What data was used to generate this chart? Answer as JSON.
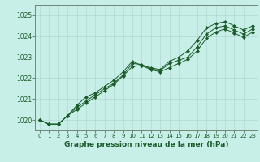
{
  "title": "Graphe pression niveau de la mer (hPa)",
  "bg_color": "#c8eee8",
  "grid_color": "#b0d8d0",
  "line_color": "#1a5c2a",
  "xlim": [
    -0.5,
    23.5
  ],
  "ylim": [
    1019.5,
    1025.5
  ],
  "yticks": [
    1020,
    1021,
    1022,
    1023,
    1024,
    1025
  ],
  "xticks": [
    0,
    1,
    2,
    3,
    4,
    5,
    6,
    7,
    8,
    9,
    10,
    11,
    12,
    13,
    14,
    15,
    16,
    17,
    18,
    19,
    20,
    21,
    22,
    23
  ],
  "series1_x": [
    0,
    1,
    2,
    3,
    4,
    5,
    6,
    7,
    8,
    9,
    10,
    11,
    12,
    13,
    14,
    15,
    16,
    17,
    18,
    19,
    20,
    21,
    22,
    23
  ],
  "series1_y": [
    1020.0,
    1019.8,
    1019.8,
    1020.2,
    1020.7,
    1021.1,
    1021.3,
    1021.6,
    1021.9,
    1022.3,
    1022.8,
    1022.6,
    1022.5,
    1022.4,
    1022.8,
    1023.0,
    1023.3,
    1023.8,
    1024.4,
    1024.6,
    1024.7,
    1024.5,
    1024.3,
    1024.5
  ],
  "series2_x": [
    0,
    1,
    2,
    3,
    4,
    5,
    6,
    7,
    8,
    9,
    10,
    11,
    12,
    13,
    14,
    15,
    16,
    17,
    18,
    19,
    20,
    21,
    22,
    23
  ],
  "series2_y": [
    1020.0,
    1019.8,
    1019.8,
    1020.2,
    1020.6,
    1020.9,
    1021.2,
    1021.5,
    1021.75,
    1022.15,
    1022.7,
    1022.65,
    1022.45,
    1022.35,
    1022.7,
    1022.85,
    1023.0,
    1023.5,
    1024.1,
    1024.4,
    1024.5,
    1024.3,
    1024.1,
    1024.35
  ],
  "series3_x": [
    0,
    1,
    2,
    3,
    4,
    5,
    6,
    7,
    8,
    9,
    10,
    11,
    12,
    13,
    14,
    15,
    16,
    17,
    18,
    19,
    20,
    21,
    22,
    23
  ],
  "series3_y": [
    1020.0,
    1019.8,
    1019.8,
    1020.2,
    1020.5,
    1020.8,
    1021.1,
    1021.4,
    1021.7,
    1022.1,
    1022.55,
    1022.6,
    1022.4,
    1022.3,
    1022.5,
    1022.7,
    1022.9,
    1023.3,
    1023.9,
    1024.2,
    1024.35,
    1024.15,
    1023.95,
    1024.2
  ],
  "title_fontsize": 6.5,
  "tick_fontsize": 5.5
}
